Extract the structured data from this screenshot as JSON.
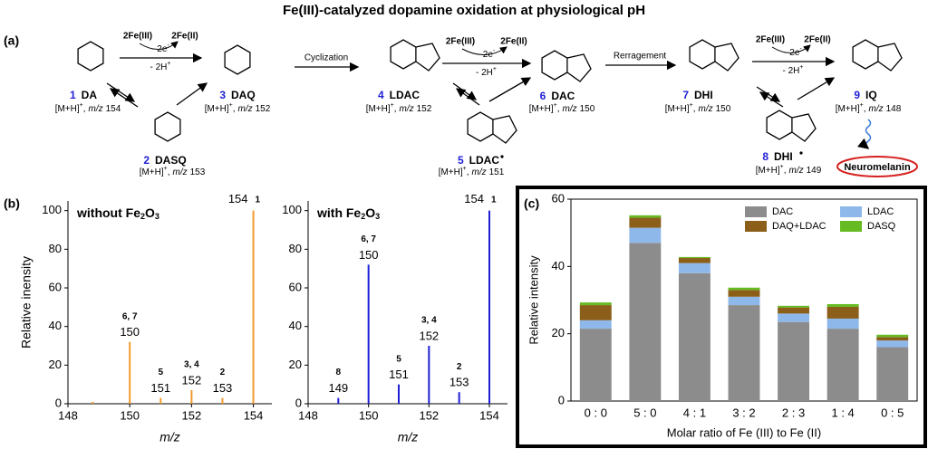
{
  "title": "Fe(III)-catalyzed dopamine oxidation at physiological pH",
  "panel_labels": [
    "(a)",
    "(b)",
    "(c)"
  ],
  "scheme": {
    "ion_prefix": "[M+H]",
    "ion_charge": "+",
    "separator": ",",
    "mz_label": "m/z",
    "compounds": [
      {
        "number": "1",
        "name": "DA",
        "mz": 154
      },
      {
        "number": "2",
        "name": "DASQ",
        "mz": 153
      },
      {
        "number": "3",
        "name": "DAQ",
        "mz": 152
      },
      {
        "number": "4",
        "name": "LDAC",
        "mz": 152
      },
      {
        "number": "5",
        "name": "LDAC",
        "mz": 151
      },
      {
        "number": "6",
        "name": "DAC",
        "mz": 150
      },
      {
        "number": "7",
        "name": "DHI",
        "mz": 150
      },
      {
        "number": "8",
        "name": "DHI",
        "mz": 149
      },
      {
        "number": "9",
        "name": "IQ",
        "mz": 148
      }
    ],
    "reagents": {
      "oxidant": "2Fe(III)",
      "reductant": "2Fe(II)",
      "electrons": "- 2e",
      "electron_charge": "-",
      "protons": "- 2H",
      "proton_charge": "+"
    },
    "steps": [
      "Cyclization",
      "Rerragement"
    ],
    "product": "Neuromelanin"
  },
  "chart_data": [
    {
      "type": "stem",
      "title_parts": [
        "without Fe",
        "2",
        "O",
        "3"
      ],
      "x": [
        148.8,
        150,
        151,
        152,
        153,
        154
      ],
      "values": [
        1,
        32,
        3,
        7,
        3,
        100
      ],
      "annotations": [
        null,
        "6, 7",
        "5",
        "3, 4",
        "2",
        "1"
      ],
      "color": "#f39a2e",
      "annotation_color": "#f39a2e",
      "xlim": [
        148,
        154.6
      ],
      "xticks": [
        148,
        150,
        152,
        154
      ],
      "ylim": [
        0,
        105
      ],
      "yticks": [
        0,
        20,
        40,
        60,
        80,
        100
      ],
      "x_label": "m/z",
      "y_label": "Relative inensity"
    },
    {
      "type": "stem",
      "title_parts": [
        "with Fe",
        "2",
        "O",
        "3"
      ],
      "x": [
        149,
        150,
        151,
        152,
        153,
        154
      ],
      "values": [
        3,
        72,
        10,
        30,
        6,
        100
      ],
      "annotations": [
        "8",
        "6, 7",
        "5",
        "3, 4",
        "2",
        "1"
      ],
      "color": "#1f1fd6",
      "annotation_color": "#1f1fd6",
      "xlim": [
        148,
        154.6
      ],
      "xticks": [
        148,
        150,
        152,
        154
      ],
      "ylim": [
        0,
        105
      ],
      "yticks": [
        0,
        20,
        40,
        60,
        80,
        100
      ],
      "x_label": "m/z"
    },
    {
      "type": "stacked_bar",
      "categories": [
        "0 : 0",
        "5 : 0",
        "4 : 1",
        "3 : 2",
        "2 : 3",
        "1 : 4",
        "0 : 5"
      ],
      "series": [
        {
          "name": "DAC",
          "color": "#8c8c8c",
          "values": [
            21.5,
            47,
            38,
            28.5,
            23.5,
            21.5,
            16
          ]
        },
        {
          "name": "LDAC",
          "color": "#8fb8ea",
          "values": [
            2.5,
            4.5,
            3,
            2.5,
            2.5,
            3,
            2
          ]
        },
        {
          "name": "DAQ+LDAC",
          "color": "#8b5e1a",
          "values": [
            4.5,
            3,
            1.5,
            2,
            1.8,
            3.5,
            1
          ]
        },
        {
          "name": "DASQ",
          "color": "#66bb22",
          "values": [
            0.8,
            0.7,
            0.3,
            0.7,
            0.5,
            0.8,
            0.7
          ]
        }
      ],
      "ylim": [
        0,
        60
      ],
      "yticks": [
        0,
        20,
        40,
        60
      ],
      "x_label": "Molar ratio of Fe (III) to Fe (II)",
      "y_label": "Relative intensity",
      "legend": "top-right"
    }
  ]
}
